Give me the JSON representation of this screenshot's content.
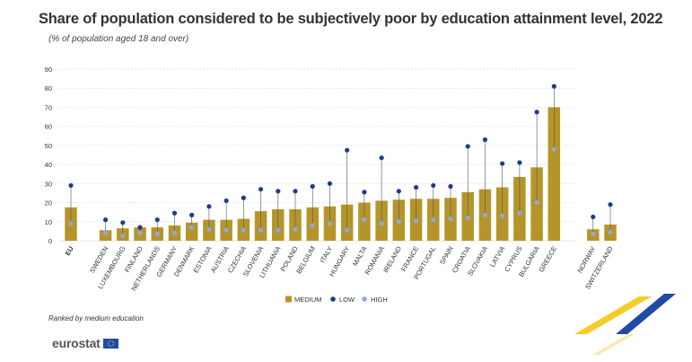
{
  "title": "Share of population considered to be subjectively poor by education attainment level, 2022",
  "subtitle": "(% of population aged 18 and over)",
  "note": "Ranked by medium education",
  "logo_text": "eurostat",
  "colors": {
    "medium": "#b5952a",
    "low": "#1f3b8c",
    "high": "#8fa8e0",
    "grid": "#dddddd",
    "axis_text": "#333333",
    "stripe_blue": "#1f4aa8",
    "stripe_yellow": "#f5c400"
  },
  "chart_data": {
    "type": "bar",
    "ylim": [
      0,
      90
    ],
    "yticks": [
      0,
      10,
      20,
      30,
      40,
      50,
      60,
      70,
      80,
      90
    ],
    "grid": true,
    "legend_position": "bottom-center",
    "groups": [
      [
        "EU"
      ],
      [
        "Sweden",
        "Luxembourg",
        "Finland",
        "Netherlands",
        "Germany",
        "Denmark",
        "Estonia",
        "Austria",
        "Czechia",
        "Slovenia",
        "Lithuania",
        "Poland",
        "Belgium",
        "Italy",
        "Hungary",
        "Malta",
        "Romania",
        "Ireland",
        "France",
        "Portugal",
        "Spain",
        "Croatia",
        "Slovakia",
        "Latvia",
        "Cyprus",
        "Bulgaria",
        "Greece"
      ],
      [
        "Norway",
        "Switzerland"
      ]
    ],
    "categories": [
      "EU",
      "Sweden",
      "Luxembourg",
      "Finland",
      "Netherlands",
      "Germany",
      "Denmark",
      "Estonia",
      "Austria",
      "Czechia",
      "Slovenia",
      "Lithuania",
      "Poland",
      "Belgium",
      "Italy",
      "Hungary",
      "Malta",
      "Romania",
      "Ireland",
      "France",
      "Portugal",
      "Spain",
      "Croatia",
      "Slovakia",
      "Latvia",
      "Cyprus",
      "Bulgaria",
      "Greece",
      "Norway",
      "Switzerland"
    ],
    "series": [
      {
        "name": "MEDIUM",
        "kind": "bar",
        "values": [
          17.5,
          5.5,
          6.5,
          7,
          7,
          8,
          9.5,
          11,
          11,
          11.5,
          15.5,
          16.5,
          16.5,
          17.5,
          18,
          19,
          20,
          21,
          21.5,
          22,
          22,
          22.5,
          25.5,
          27,
          28,
          33.5,
          38.5,
          70,
          6,
          8.5
        ]
      },
      {
        "name": "LOW",
        "kind": "dot",
        "values": [
          29,
          11,
          9.5,
          7,
          11,
          14.5,
          13.5,
          18,
          21,
          22.5,
          27,
          26,
          26,
          28.5,
          30,
          47.5,
          25.5,
          43.5,
          26,
          28,
          29,
          28.5,
          49.5,
          53,
          40.5,
          41,
          67.5,
          81,
          12.5,
          19
        ]
      },
      {
        "name": "HIGH",
        "kind": "dot",
        "values": [
          9,
          4,
          2.5,
          4,
          3.5,
          4,
          7,
          6,
          5.5,
          5.5,
          5.5,
          5.5,
          6,
          8,
          9,
          5.5,
          11,
          9,
          10,
          10.5,
          11,
          11.5,
          12,
          13.5,
          13,
          14.5,
          20,
          48,
          3.5,
          4.5
        ]
      }
    ]
  }
}
